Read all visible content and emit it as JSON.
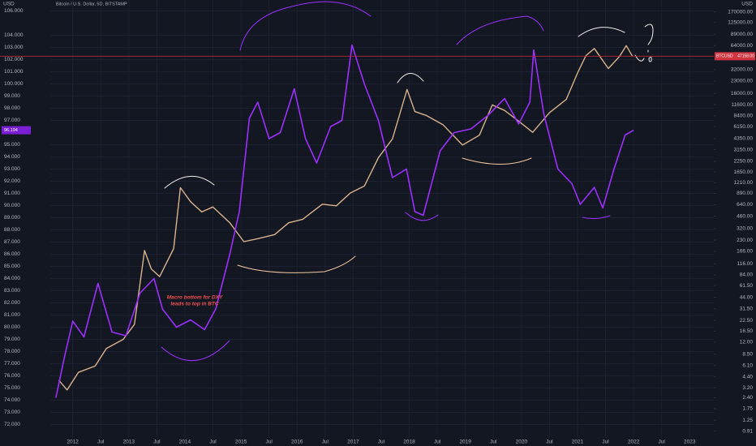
{
  "chart_data": {
    "type": "line",
    "title": "Bitcoin / U.S. Dollar, 5D, BITSTAMP",
    "left_unit": "USD",
    "right_unit": "USD",
    "annotation": [
      "Macro bottom for DXY",
      "leads to top in BTC"
    ],
    "last_price": {
      "value": 47158,
      "label": "47158.00"
    },
    "last_price_symbol": "BTCUSD",
    "dxy_last": 96.194,
    "grid": true,
    "y2_log": true,
    "xlim": [
      2011.6,
      2023.43
    ],
    "ylim": [
      70.9,
      106.9
    ],
    "y2lim": [
      0.75,
      240000
    ],
    "xticks": [
      {
        "value": 2012,
        "label": "2012"
      },
      {
        "value": 2012.5,
        "label": "Jul"
      },
      {
        "value": 2013,
        "label": "2013"
      },
      {
        "value": 2013.5,
        "label": "Jul"
      },
      {
        "value": 2014,
        "label": "2014"
      },
      {
        "value": 2014.5,
        "label": "Jul"
      },
      {
        "value": 2015,
        "label": "2015"
      },
      {
        "value": 2015.5,
        "label": "Jul"
      },
      {
        "value": 2016,
        "label": "2016"
      },
      {
        "value": 2016.5,
        "label": "Jul"
      },
      {
        "value": 2017,
        "label": "2017"
      },
      {
        "value": 2017.5,
        "label": "Jul"
      },
      {
        "value": 2018,
        "label": "2018"
      },
      {
        "value": 2018.5,
        "label": "Jul"
      },
      {
        "value": 2019,
        "label": "2019"
      },
      {
        "value": 2019.5,
        "label": "Jul"
      },
      {
        "value": 2020,
        "label": "2020"
      },
      {
        "value": 2020.5,
        "label": "Jul"
      },
      {
        "value": 2021,
        "label": "2021"
      },
      {
        "value": 2021.5,
        "label": "Jul"
      },
      {
        "value": 2022,
        "label": "2022"
      },
      {
        "value": 2022.5,
        "label": "Jul"
      },
      {
        "value": 2023,
        "label": "2023"
      }
    ],
    "yticks": [
      {
        "value": 72,
        "label": "72.000"
      },
      {
        "value": 73,
        "label": "73.000"
      },
      {
        "value": 74,
        "label": "74.000"
      },
      {
        "value": 75,
        "label": "75.000"
      },
      {
        "value": 76,
        "label": "76.000"
      },
      {
        "value": 77,
        "label": "77.000"
      },
      {
        "value": 78,
        "label": "78.000"
      },
      {
        "value": 79,
        "label": "79.000"
      },
      {
        "value": 80,
        "label": "80.000"
      },
      {
        "value": 81,
        "label": "81.000"
      },
      {
        "value": 82,
        "label": "82.000"
      },
      {
        "value": 83,
        "label": "83.000"
      },
      {
        "value": 84,
        "label": "84.000"
      },
      {
        "value": 85,
        "label": "85.000"
      },
      {
        "value": 86,
        "label": "86.000"
      },
      {
        "value": 87,
        "label": "87.000"
      },
      {
        "value": 88,
        "label": "88.000"
      },
      {
        "value": 89,
        "label": "89.000"
      },
      {
        "value": 90,
        "label": "90.000"
      },
      {
        "value": 91,
        "label": "91.000"
      },
      {
        "value": 92,
        "label": "92.000"
      },
      {
        "value": 93,
        "label": "93.000"
      },
      {
        "value": 94,
        "label": "94.000"
      },
      {
        "value": 95,
        "label": "95.000"
      },
      {
        "value": 97,
        "label": "97.000"
      },
      {
        "value": 98,
        "label": "98.000"
      },
      {
        "value": 99,
        "label": "99.000"
      },
      {
        "value": 100,
        "label": "100.000"
      },
      {
        "value": 101,
        "label": "101.000"
      },
      {
        "value": 102,
        "label": "102.000"
      },
      {
        "value": 103,
        "label": "103.000"
      },
      {
        "value": 104,
        "label": "104.000"
      },
      {
        "value": 106,
        "label": "106.000"
      }
    ],
    "y2ticks": [
      {
        "value": 170000,
        "label": "170000.00"
      },
      {
        "value": 125000,
        "label": "125000.00"
      },
      {
        "value": 89000,
        "label": "89000.00"
      },
      {
        "value": 64000,
        "label": "64000.00"
      },
      {
        "value": 32000,
        "label": "32000.00"
      },
      {
        "value": 23000,
        "label": "23000.00"
      },
      {
        "value": 16000,
        "label": "16000.00"
      },
      {
        "value": 11600,
        "label": "11600.00"
      },
      {
        "value": 8400,
        "label": "8400.00"
      },
      {
        "value": 6150,
        "label": "6150.00"
      },
      {
        "value": 4350,
        "label": "4350.00"
      },
      {
        "value": 3150,
        "label": "3150.00"
      },
      {
        "value": 2250,
        "label": "2250.00"
      },
      {
        "value": 1650,
        "label": "1650.00"
      },
      {
        "value": 1210,
        "label": "1210.00"
      },
      {
        "value": 890,
        "label": "890.00"
      },
      {
        "value": 640,
        "label": "640.00"
      },
      {
        "value": 460,
        "label": "460.00"
      },
      {
        "value": 320,
        "label": "320.00"
      },
      {
        "value": 230,
        "label": "230.00"
      },
      {
        "value": 166,
        "label": "166.00"
      },
      {
        "value": 116,
        "label": "116.00"
      },
      {
        "value": 84,
        "label": "84.00"
      },
      {
        "value": 61.5,
        "label": "61.50"
      },
      {
        "value": 44,
        "label": "44.00"
      },
      {
        "value": 31.5,
        "label": "31.50"
      },
      {
        "value": 22.5,
        "label": "22.50"
      },
      {
        "value": 16.5,
        "label": "16.50"
      },
      {
        "value": 12,
        "label": "12.00"
      },
      {
        "value": 8.5,
        "label": "8.50"
      },
      {
        "value": 6.1,
        "label": "6.10"
      },
      {
        "value": 4.4,
        "label": "4.40"
      },
      {
        "value": 3.2,
        "label": "3.20"
      },
      {
        "value": 2.4,
        "label": "2.40"
      },
      {
        "value": 1.75,
        "label": "1.75"
      },
      {
        "value": 1.25,
        "label": "1.25"
      },
      {
        "value": 0.91,
        "label": "0.91"
      }
    ],
    "series": [
      {
        "name": "BTCUSD",
        "color": "#d9b38c",
        "axis": "y2",
        "x": [
          2011.75,
          2011.9,
          2012.1,
          2012.4,
          2012.6,
          2012.9,
          2013.1,
          2013.28,
          2013.4,
          2013.55,
          2013.8,
          2013.92,
          2014.1,
          2014.3,
          2014.5,
          2014.8,
          2015.05,
          2015.3,
          2015.6,
          2015.85,
          2016.1,
          2016.45,
          2016.7,
          2016.95,
          2017.2,
          2017.45,
          2017.7,
          2017.96,
          2018.1,
          2018.3,
          2018.6,
          2018.95,
          2019.25,
          2019.48,
          2019.7,
          2019.95,
          2020.2,
          2020.5,
          2020.8,
          2021.0,
          2021.15,
          2021.3,
          2021.55,
          2021.75,
          2021.87,
          2021.98
        ],
        "values": [
          4,
          3,
          5,
          6,
          10,
          13,
          20,
          170,
          100,
          80,
          180,
          1050,
          700,
          520,
          600,
          380,
          220,
          240,
          270,
          380,
          420,
          650,
          620,
          900,
          1100,
          2500,
          4300,
          18000,
          9500,
          8500,
          6500,
          3600,
          4800,
          11500,
          9800,
          7200,
          5200,
          9200,
          13500,
          29000,
          48000,
          59000,
          33000,
          47000,
          64000,
          47158
        ]
      },
      {
        "name": "DXY",
        "color": "#9b30ff",
        "axis": "y",
        "x": [
          2011.7,
          2011.85,
          2012.0,
          2012.2,
          2012.45,
          2012.7,
          2012.95,
          2013.2,
          2013.45,
          2013.6,
          2013.85,
          2014.1,
          2014.35,
          2014.55,
          2014.8,
          2014.97,
          2015.15,
          2015.3,
          2015.5,
          2015.7,
          2015.95,
          2016.15,
          2016.35,
          2016.6,
          2016.8,
          2016.98,
          2017.2,
          2017.45,
          2017.7,
          2017.95,
          2018.1,
          2018.25,
          2018.55,
          2018.8,
          2019.1,
          2019.4,
          2019.7,
          2019.95,
          2020.15,
          2020.22,
          2020.4,
          2020.65,
          2020.9,
          2021.05,
          2021.3,
          2021.45,
          2021.65,
          2021.85,
          2022.0
        ],
        "values": [
          74.2,
          77.5,
          80.5,
          79.2,
          83.6,
          79.6,
          79.3,
          82.8,
          84.0,
          81.5,
          80.0,
          80.6,
          79.8,
          81.5,
          86.0,
          89.5,
          97.2,
          98.5,
          95.5,
          96.0,
          99.6,
          95.5,
          93.5,
          96.5,
          97.0,
          103.2,
          100.0,
          97.0,
          92.3,
          93.0,
          89.5,
          89.2,
          94.5,
          96.0,
          96.3,
          97.4,
          98.8,
          96.7,
          98.5,
          102.8,
          97.5,
          93.0,
          91.8,
          90.1,
          91.5,
          89.8,
          93.0,
          95.8,
          96.194
        ]
      }
    ]
  }
}
